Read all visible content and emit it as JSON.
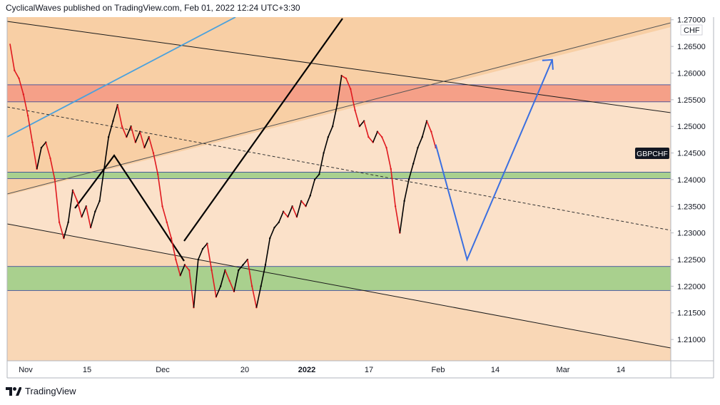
{
  "header": {
    "publish_text": "CyclicalWaves published on TradingView.com, Feb 01, 2022 12:24 UTC+3:30"
  },
  "footer": {
    "brand": "TradingView",
    "logo_icon": "tradingview-logo-icon"
  },
  "colors": {
    "background_light": "#fbe1c9",
    "background_dark": "#f8cfa5",
    "resistance_zone": "#f5a088",
    "support_zone_upper": "#a9d08e",
    "support_zone_lower": "#b4cc87",
    "price_line": "#000000",
    "candle_down": "#e0191f",
    "projection": "#3a6fe0",
    "channel_line": "#1a1a1a",
    "old_trendline": "#4aa1dd"
  },
  "chart_data": {
    "type": "line",
    "symbol": "GBPCHF",
    "currency": "CHF",
    "y_range": [
      1.206,
      1.2705
    ],
    "y_ticks": [
      "1.27000",
      "1.26500",
      "1.26000",
      "1.25500",
      "1.25000",
      "1.24500",
      "1.24000",
      "1.23500",
      "1.23000",
      "1.22500",
      "1.22000",
      "1.21500",
      "1.21000"
    ],
    "x_ticks": [
      "Nov",
      "15",
      "Dec",
      "20",
      "2022",
      "17",
      "Feb",
      "14",
      "Mar",
      "14"
    ],
    "x_tick_bold": "2022",
    "zones": [
      {
        "name": "resistance",
        "top": 1.2578,
        "bottom": 1.2546
      },
      {
        "name": "support-upper",
        "top": 1.2414,
        "bottom": 1.2402
      },
      {
        "name": "support-lower",
        "top": 1.2237,
        "bottom": 1.2192
      }
    ],
    "price_path": [
      [
        0,
        1.2655
      ],
      [
        1,
        1.2605
      ],
      [
        2,
        1.259
      ],
      [
        3,
        1.256
      ],
      [
        4,
        1.252
      ],
      [
        5,
        1.247
      ],
      [
        6,
        1.242
      ],
      [
        7,
        1.246
      ],
      [
        8,
        1.247
      ],
      [
        9,
        1.244
      ],
      [
        10,
        1.24
      ],
      [
        11,
        1.232
      ],
      [
        12,
        1.229
      ],
      [
        13,
        1.232
      ],
      [
        14,
        1.238
      ],
      [
        15,
        1.236
      ],
      [
        16,
        1.233
      ],
      [
        17,
        1.235
      ],
      [
        18,
        1.231
      ],
      [
        19,
        1.234
      ],
      [
        20,
        1.236
      ],
      [
        21,
        1.242
      ],
      [
        22,
        1.248
      ],
      [
        23,
        1.251
      ],
      [
        24,
        1.254
      ],
      [
        25,
        1.25
      ],
      [
        26,
        1.248
      ],
      [
        27,
        1.25
      ],
      [
        28,
        1.247
      ],
      [
        29,
        1.249
      ],
      [
        30,
        1.246
      ],
      [
        31,
        1.248
      ],
      [
        32,
        1.245
      ],
      [
        33,
        1.241
      ],
      [
        34,
        1.235
      ],
      [
        35,
        1.232
      ],
      [
        36,
        1.229
      ],
      [
        37,
        1.225
      ],
      [
        38,
        1.222
      ],
      [
        39,
        1.224
      ],
      [
        40,
        1.223
      ],
      [
        41,
        1.216
      ],
      [
        42,
        1.225
      ],
      [
        43,
        1.227
      ],
      [
        44,
        1.228
      ],
      [
        45,
        1.223
      ],
      [
        46,
        1.218
      ],
      [
        47,
        1.22
      ],
      [
        48,
        1.223
      ],
      [
        49,
        1.221
      ],
      [
        50,
        1.219
      ],
      [
        51,
        1.223
      ],
      [
        52,
        1.224
      ],
      [
        53,
        1.225
      ],
      [
        54,
        1.22
      ],
      [
        55,
        1.216
      ],
      [
        56,
        1.22
      ],
      [
        57,
        1.224
      ],
      [
        58,
        1.229
      ],
      [
        59,
        1.231
      ],
      [
        60,
        1.232
      ],
      [
        61,
        1.234
      ],
      [
        62,
        1.233
      ],
      [
        63,
        1.235
      ],
      [
        64,
        1.233
      ],
      [
        65,
        1.236
      ],
      [
        66,
        1.235
      ],
      [
        67,
        1.237
      ],
      [
        68,
        1.24
      ],
      [
        69,
        1.241
      ],
      [
        70,
        1.245
      ],
      [
        71,
        1.248
      ],
      [
        72,
        1.25
      ],
      [
        73,
        1.254
      ],
      [
        74,
        1.2595
      ],
      [
        75,
        1.259
      ],
      [
        76,
        1.257
      ],
      [
        77,
        1.253
      ],
      [
        78,
        1.25
      ],
      [
        79,
        1.251
      ],
      [
        80,
        1.248
      ],
      [
        81,
        1.247
      ],
      [
        82,
        1.249
      ],
      [
        83,
        1.248
      ],
      [
        84,
        1.246
      ],
      [
        85,
        1.242
      ],
      [
        86,
        1.235
      ],
      [
        87,
        1.23
      ],
      [
        88,
        1.236
      ],
      [
        89,
        1.24
      ],
      [
        90,
        1.243
      ],
      [
        91,
        1.246
      ],
      [
        92,
        1.248
      ],
      [
        93,
        1.251
      ],
      [
        94,
        1.249
      ],
      [
        95,
        1.246
      ]
    ],
    "projection": [
      [
        95,
        1.2466
      ],
      [
        102,
        1.225
      ],
      [
        121,
        1.2625
      ]
    ]
  }
}
